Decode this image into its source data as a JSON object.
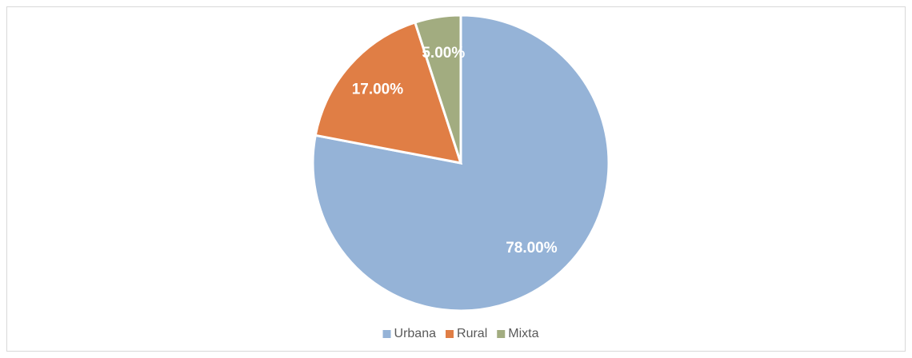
{
  "chart_data": {
    "type": "pie",
    "categories": [
      "Urbana",
      "Rural",
      "Mixta"
    ],
    "values": [
      78,
      17,
      5
    ],
    "value_labels": [
      "78.00%",
      "17.00%",
      "5.00%"
    ],
    "colors": [
      "#95b3d7",
      "#e07e45",
      "#a2ac80"
    ],
    "legend": "bottom"
  }
}
